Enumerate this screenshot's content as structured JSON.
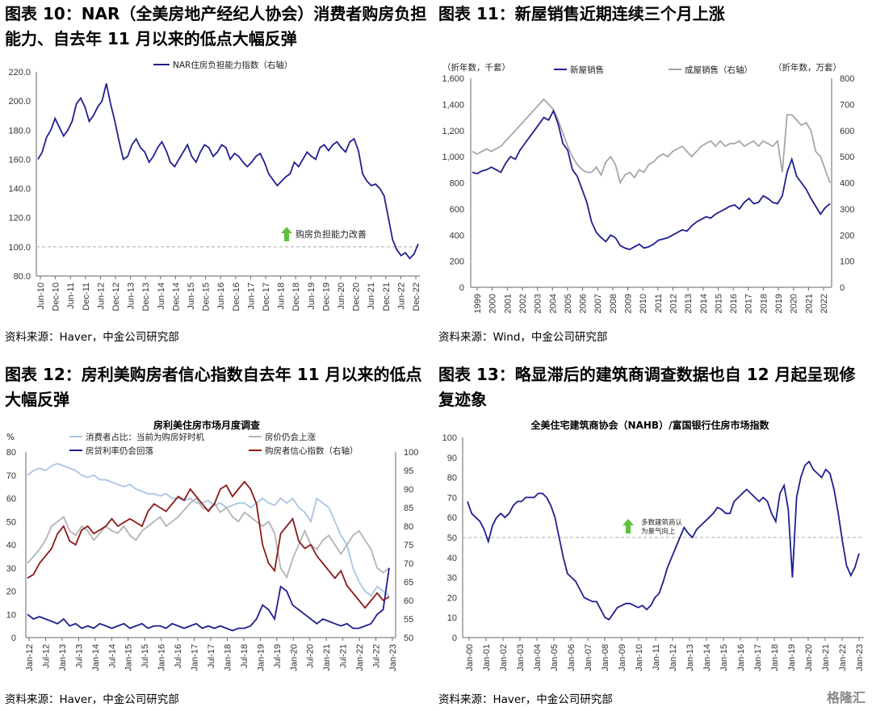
{
  "figures": [
    {
      "title": "图表 10：NAR（全美房地产经纪人协会）消费者购房负担\n能力、自去年 11 月以来的低点大幅反弹",
      "source": "资料来源：Haver，中金公司研究部"
    },
    {
      "title": "图表 11：新屋销售近期连续三个月上涨",
      "source": "资料来源：Wind，中金公司研究部"
    },
    {
      "title": "图表 12：房利美购房者信心指数自去年 11 月以来的低点\n大幅反弹",
      "source": "资料来源：Haver，中金公司研究部"
    },
    {
      "title": "图表 13：略显滞后的建筑商调查数据也自 12 月起呈现修\n复迹象",
      "source": "资料来源：Haver，中金公司研究部"
    }
  ],
  "watermark": "格隆汇",
  "chart_data": [
    {
      "type": "line",
      "title": "",
      "legend": [
        "NAR住房负担能力指数（右轴）"
      ],
      "annotation": "购房负担能力改善",
      "ylim": [
        80,
        220
      ],
      "yticks": [
        "80.0",
        "100.0",
        "120.0",
        "140.0",
        "160.0",
        "180.0",
        "200.0",
        "220.0"
      ],
      "xticks": [
        "Jun-10",
        "Dec-10",
        "Jun-11",
        "Dec-11",
        "Jun-12",
        "Dec-12",
        "Jun-13",
        "Dec-13",
        "Jun-14",
        "Dec-14",
        "Jun-15",
        "Dec-15",
        "Jun-16",
        "Dec-16",
        "Jun-17",
        "Dec-17",
        "Jun-18",
        "Dec-18",
        "Jun-19",
        "Dec-19",
        "Jun-20",
        "Dec-20",
        "Jun-21",
        "Dec-21",
        "Jun-22",
        "Dec-22"
      ],
      "reference_line": 100,
      "series": [
        {
          "name": "NAR住房负担能力指数（右轴）",
          "color": "#1f1f8f",
          "values": [
            160,
            165,
            175,
            180,
            188,
            182,
            176,
            180,
            186,
            198,
            202,
            196,
            186,
            190,
            196,
            200,
            212,
            198,
            186,
            172,
            160,
            162,
            170,
            174,
            168,
            165,
            158,
            162,
            168,
            172,
            166,
            158,
            155,
            160,
            165,
            170,
            162,
            158,
            165,
            170,
            168,
            162,
            165,
            170,
            168,
            160,
            164,
            162,
            158,
            155,
            158,
            162,
            164,
            158,
            150,
            146,
            142,
            145,
            148,
            150,
            158,
            155,
            160,
            165,
            162,
            160,
            168,
            170,
            166,
            170,
            172,
            168,
            165,
            172,
            174,
            166,
            150,
            145,
            142,
            143,
            140,
            135,
            120,
            105,
            98,
            94,
            96,
            92,
            95,
            102
          ]
        }
      ]
    },
    {
      "type": "line",
      "title": "",
      "legend": [
        "新屋销售",
        "成屋销售（右轴）"
      ],
      "ylabel_left": "（折年数，千套）",
      "ylabel_right": "（折年数，万套）",
      "ylim_left": [
        0,
        1600
      ],
      "ylim_right": [
        0,
        800
      ],
      "yticks_left": [
        "0",
        "200",
        "400",
        "600",
        "800",
        "1,000",
        "1,200",
        "1,400",
        "1,600"
      ],
      "yticks_right": [
        "0",
        "100",
        "200",
        "300",
        "400",
        "500",
        "600",
        "700",
        "800"
      ],
      "xticks": [
        "1999",
        "2000",
        "2001",
        "2002",
        "2003",
        "2004",
        "2005",
        "2006",
        "2007",
        "2008",
        "2009",
        "2010",
        "2011",
        "2012",
        "2013",
        "2014",
        "2015",
        "2016",
        "2017",
        "2018",
        "2019",
        "2020",
        "2021",
        "2022"
      ],
      "series": [
        {
          "name": "新屋销售",
          "color": "#1f1f8f",
          "axis": "left",
          "values": [
            880,
            870,
            890,
            900,
            920,
            900,
            880,
            950,
            1000,
            980,
            1050,
            1100,
            1150,
            1200,
            1250,
            1300,
            1280,
            1350,
            1250,
            1100,
            1050,
            900,
            850,
            750,
            650,
            500,
            420,
            380,
            350,
            400,
            380,
            320,
            300,
            290,
            310,
            330,
            300,
            310,
            330,
            360,
            370,
            380,
            400,
            420,
            440,
            430,
            470,
            500,
            520,
            540,
            530,
            560,
            580,
            600,
            620,
            630,
            600,
            650,
            680,
            640,
            650,
            700,
            680,
            650,
            640,
            700,
            880,
            980,
            850,
            800,
            750,
            680,
            620,
            560,
            610,
            640
          ]
        },
        {
          "name": "成屋销售（右轴）",
          "color": "#a6a6a6",
          "axis": "right",
          "values": [
            520,
            510,
            520,
            530,
            520,
            530,
            540,
            560,
            580,
            600,
            620,
            640,
            660,
            680,
            700,
            720,
            700,
            680,
            640,
            590,
            540,
            500,
            470,
            450,
            440,
            440,
            460,
            430,
            480,
            500,
            470,
            400,
            430,
            440,
            420,
            450,
            440,
            470,
            480,
            500,
            510,
            500,
            520,
            530,
            540,
            520,
            500,
            520,
            540,
            550,
            560,
            540,
            560,
            540,
            550,
            550,
            560,
            540,
            550,
            560,
            540,
            560,
            550,
            540,
            560,
            440,
            660,
            660,
            640,
            620,
            630,
            600,
            520,
            500,
            450,
            400
          ]
        }
      ]
    },
    {
      "type": "line",
      "title": "房利美住房市场月度调查",
      "legend": [
        "消费者占比：当前为购房好时机",
        "房价仍会上涨",
        "房贷利率仍会回落",
        "购房者信心指数（右轴）"
      ],
      "ylabel_left": "%",
      "ylim_left": [
        0,
        80
      ],
      "ylim_right": [
        50,
        100
      ],
      "yticks_left": [
        "0",
        "10",
        "20",
        "30",
        "40",
        "50",
        "60",
        "70",
        "80"
      ],
      "yticks_right": [
        "50",
        "55",
        "60",
        "65",
        "70",
        "75",
        "80",
        "85",
        "90",
        "95",
        "100"
      ],
      "xticks": [
        "Jan-12",
        "Jul-12",
        "Jan-13",
        "Jul-13",
        "Jan-14",
        "Jul-14",
        "Jan-15",
        "Jul-15",
        "Jan-16",
        "Jul-16",
        "Jan-17",
        "Jul-17",
        "Jan-18",
        "Jul-18",
        "Jan-19",
        "Jul-19",
        "Jan-20",
        "Jul-20",
        "Jan-21",
        "Jul-21",
        "Jan-22",
        "Jul-22",
        "Jan-23"
      ],
      "series": [
        {
          "name": "消费者占比：当前为购房好时机",
          "color": "#a9c4e4",
          "axis": "left",
          "values": [
            70,
            72,
            73,
            72,
            74,
            75,
            74,
            73,
            72,
            70,
            69,
            70,
            68,
            68,
            67,
            66,
            65,
            66,
            64,
            63,
            62,
            62,
            61,
            62,
            60,
            60,
            59,
            60,
            58,
            58,
            59,
            57,
            58,
            56,
            57,
            58,
            58,
            56,
            58,
            60,
            58,
            57,
            60,
            58,
            60,
            56,
            54,
            50,
            60,
            58,
            56,
            50,
            44,
            40,
            30,
            24,
            20,
            18,
            22,
            20,
            18
          ]
        },
        {
          "name": "房价仍会上涨",
          "color": "#b3b3b3",
          "axis": "left",
          "values": [
            32,
            35,
            38,
            42,
            48,
            50,
            52,
            46,
            44,
            48,
            46,
            42,
            45,
            48,
            46,
            45,
            48,
            44,
            42,
            46,
            48,
            50,
            52,
            48,
            50,
            52,
            55,
            58,
            60,
            56,
            55,
            58,
            54,
            56,
            52,
            50,
            54,
            52,
            50,
            48,
            50,
            45,
            30,
            26,
            34,
            40,
            46,
            40,
            38,
            42,
            44,
            40,
            36,
            40,
            44,
            46,
            42,
            38,
            30,
            28,
            30
          ]
        },
        {
          "name": "房贷利率仍会回落",
          "color": "#1f1f8f",
          "axis": "left",
          "values": [
            10,
            8,
            9,
            8,
            7,
            6,
            8,
            5,
            6,
            4,
            5,
            4,
            6,
            5,
            4,
            5,
            6,
            4,
            5,
            6,
            4,
            5,
            5,
            4,
            6,
            5,
            4,
            5,
            6,
            4,
            5,
            4,
            5,
            4,
            3,
            4,
            4,
            5,
            8,
            14,
            12,
            8,
            22,
            20,
            14,
            12,
            10,
            8,
            6,
            8,
            7,
            6,
            5,
            6,
            4,
            4,
            5,
            6,
            10,
            12,
            30
          ]
        },
        {
          "name": "购房者信心指数（右轴）",
          "color": "#8b1a1a",
          "axis": "right",
          "values": [
            66,
            67,
            70,
            72,
            74,
            78,
            80,
            76,
            75,
            79,
            80,
            78,
            79,
            80,
            82,
            80,
            81,
            82,
            81,
            80,
            84,
            86,
            85,
            84,
            86,
            88,
            87,
            90,
            88,
            86,
            84,
            86,
            90,
            91,
            88,
            90,
            92,
            90,
            86,
            75,
            70,
            68,
            78,
            80,
            82,
            76,
            74,
            75,
            72,
            70,
            68,
            66,
            68,
            64,
            62,
            60,
            58,
            60,
            62,
            60,
            61
          ]
        }
      ]
    },
    {
      "type": "line",
      "title": "全美住宅建筑商协会（NAHB）/富国银行住房市场指数",
      "annotation": "多数建筑商认\n为景气向上",
      "ylim": [
        0,
        100
      ],
      "yticks": [
        "0",
        "10",
        "20",
        "30",
        "40",
        "50",
        "60",
        "70",
        "80",
        "90",
        "100"
      ],
      "reference_line": 50,
      "xticks": [
        "Jan-00",
        "Jan-01",
        "Jan-02",
        "Jan-03",
        "Jan-04",
        "Jan-05",
        "Jan-06",
        "Jan-07",
        "Jan-08",
        "Jan-09",
        "Jan-10",
        "Jan-11",
        "Jan-12",
        "Jan-13",
        "Jan-14",
        "Jan-15",
        "Jan-16",
        "Jan-17",
        "Jan-18",
        "Jan-19",
        "Jan-20",
        "Jan-21",
        "Jan-22",
        "Jan-23"
      ],
      "series": [
        {
          "name": "NAHB/富国银行住房市场指数",
          "color": "#1f1f8f",
          "values": [
            68,
            62,
            60,
            58,
            54,
            48,
            56,
            60,
            62,
            60,
            62,
            66,
            68,
            68,
            70,
            70,
            70,
            72,
            72,
            70,
            66,
            60,
            50,
            40,
            32,
            30,
            28,
            24,
            20,
            19,
            18,
            18,
            14,
            10,
            9,
            12,
            15,
            16,
            17,
            17,
            16,
            15,
            16,
            14,
            16,
            20,
            22,
            28,
            35,
            40,
            45,
            50,
            55,
            52,
            50,
            54,
            56,
            58,
            60,
            62,
            65,
            64,
            62,
            62,
            68,
            70,
            72,
            74,
            72,
            70,
            68,
            70,
            68,
            62,
            58,
            72,
            76,
            64,
            30,
            70,
            80,
            86,
            88,
            84,
            82,
            80,
            84,
            82,
            74,
            62,
            48,
            36,
            31,
            35,
            42
          ]
        }
      ]
    }
  ]
}
